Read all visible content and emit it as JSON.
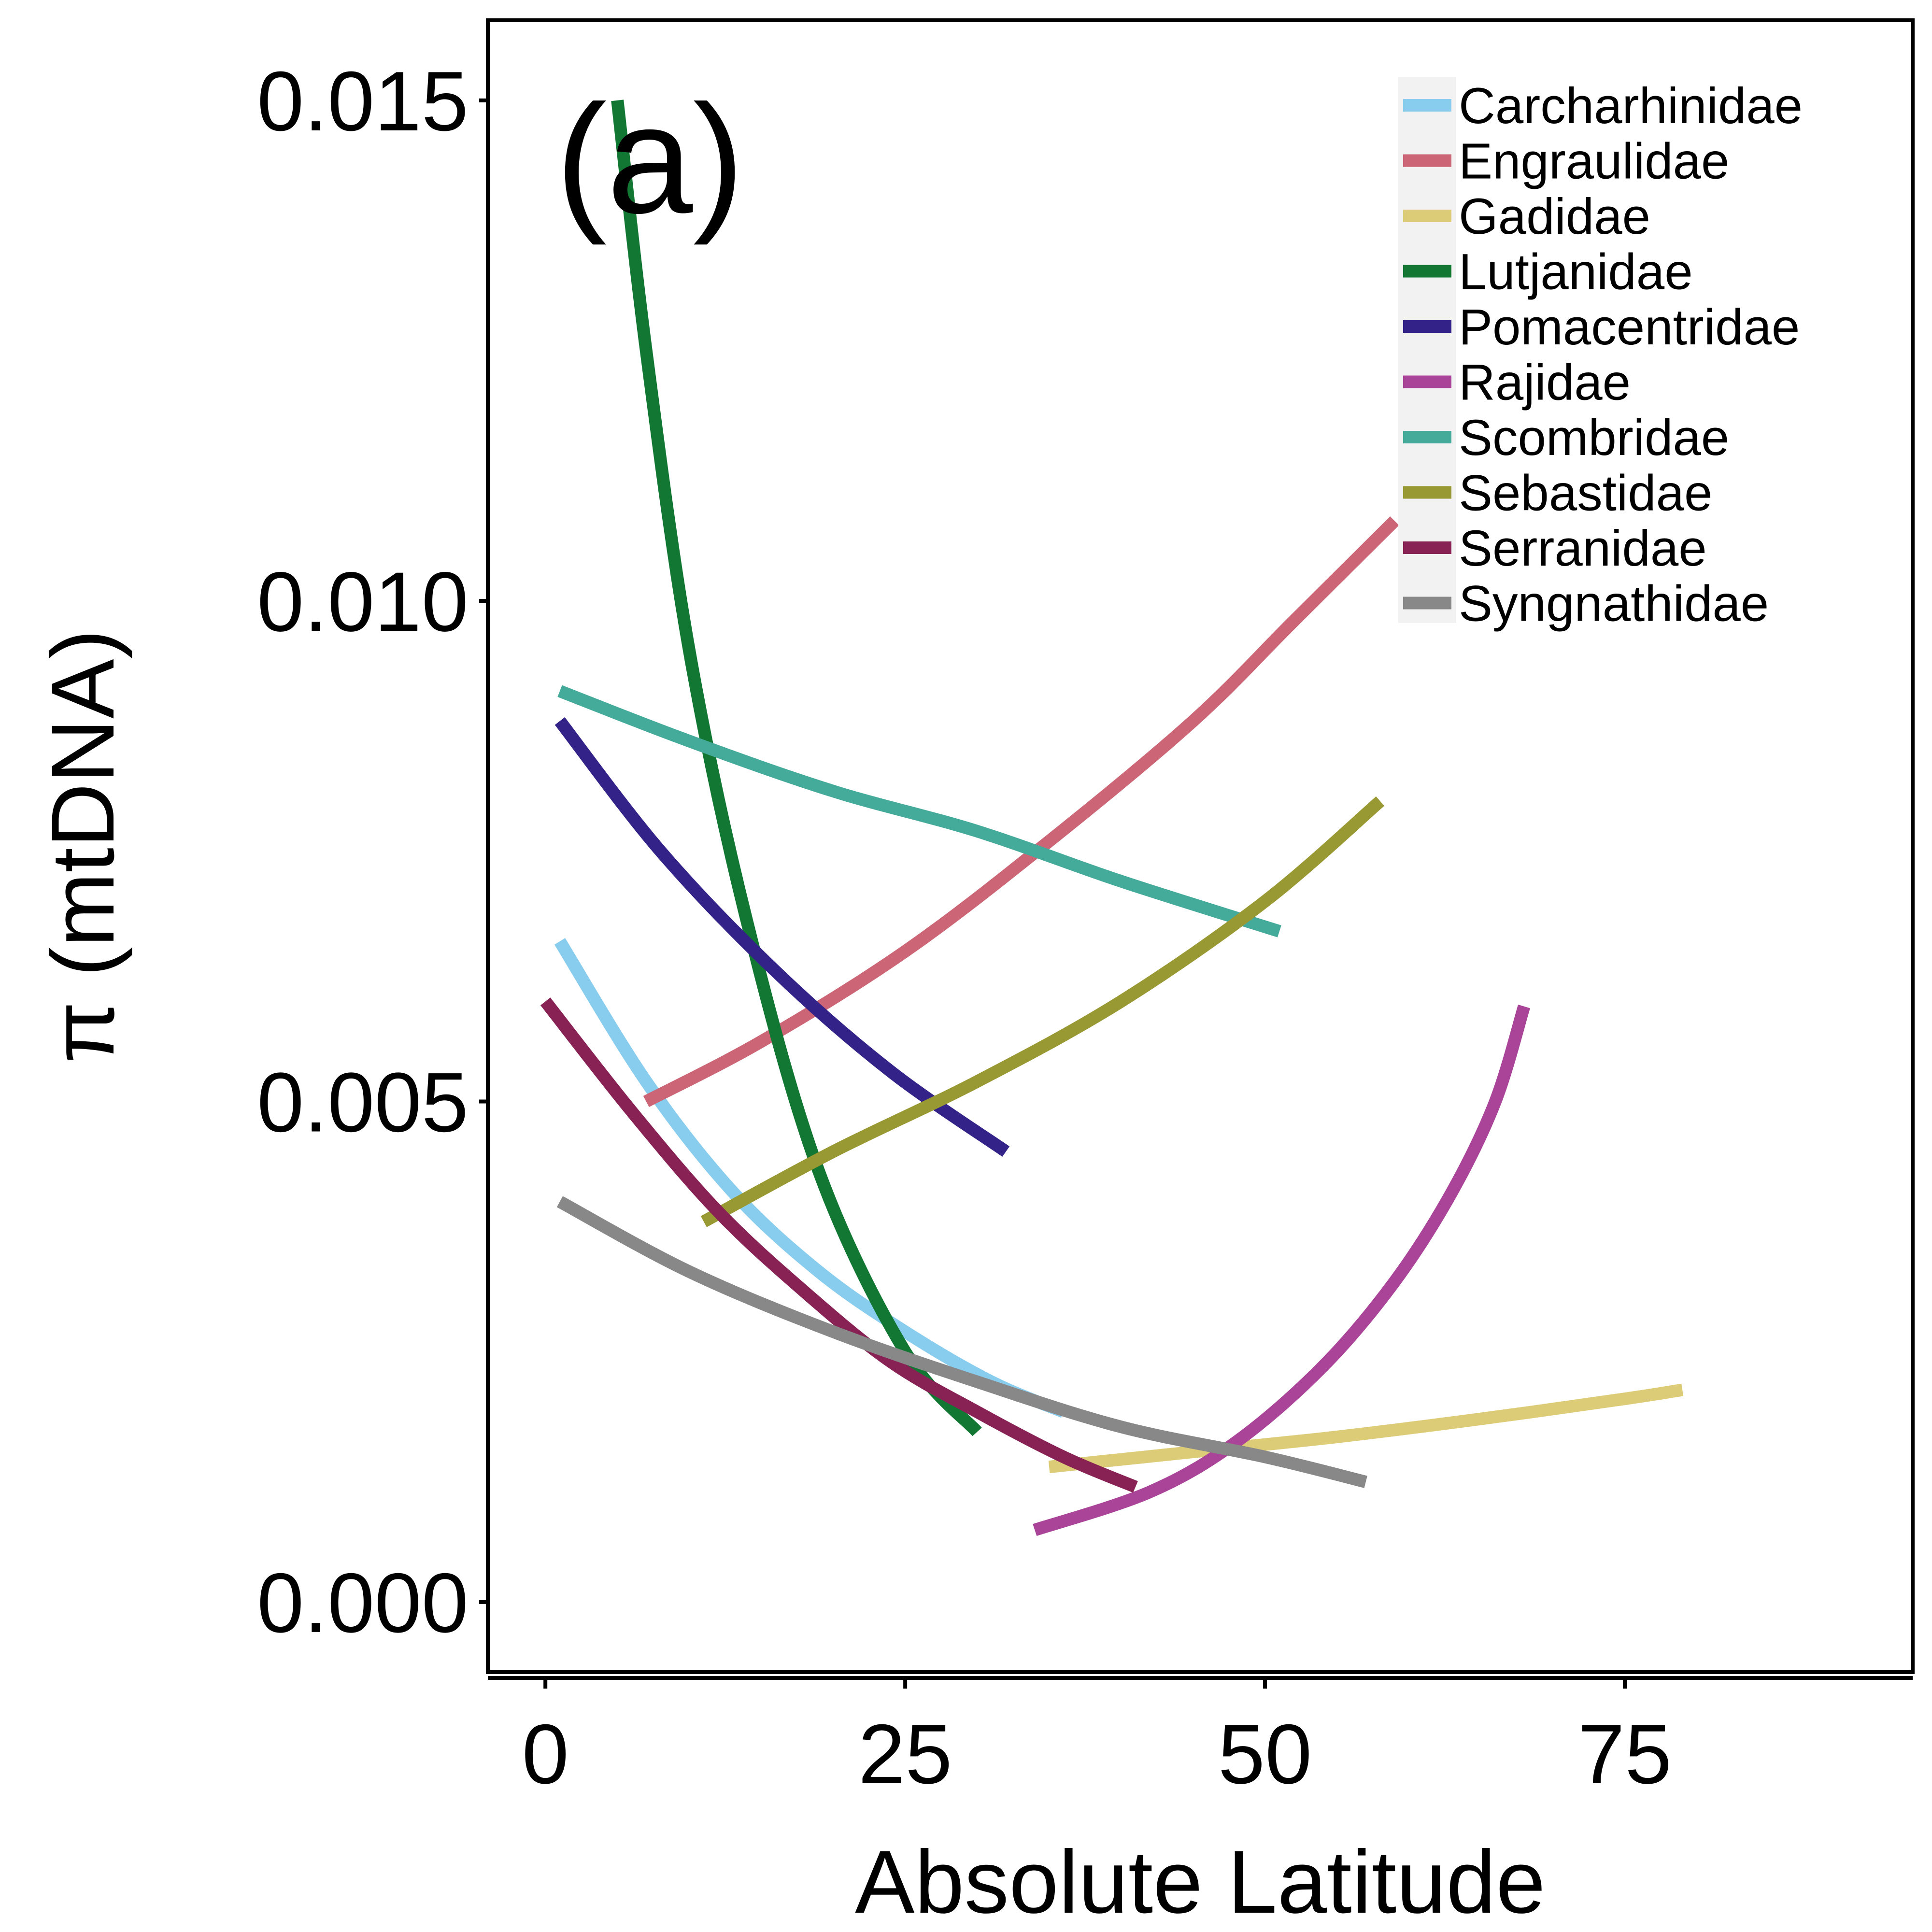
{
  "chart_data": {
    "type": "line",
    "panel_label": "(a)",
    "xlabel": "Absolute Latitude",
    "ylabel": "π (mtDNA)",
    "xlim": [
      -4,
      95
    ],
    "ylim": [
      -0.0007,
      0.0158
    ],
    "x_ticks": [
      0,
      25,
      50,
      75
    ],
    "x_tick_labels": [
      "0",
      "25",
      "50",
      "75"
    ],
    "y_ticks": [
      0,
      0.005,
      0.01,
      0.015
    ],
    "y_tick_labels": [
      "0.000",
      "0.005",
      "0.010",
      "0.015"
    ],
    "grid": false,
    "legend_position": "top-right",
    "series": [
      {
        "name": "Carcharhinidae",
        "color": "#88ccee",
        "x": [
          1,
          7,
          13,
          19,
          25,
          31,
          36
        ],
        "y": [
          0.0066,
          0.0052,
          0.0041,
          0.0033,
          0.0027,
          0.0022,
          0.0019
        ]
      },
      {
        "name": "Engraulidae",
        "color": "#cc6677",
        "x": [
          7,
          15,
          25,
          35,
          45,
          52,
          59
        ],
        "y": [
          0.005,
          0.0056,
          0.0065,
          0.0076,
          0.0088,
          0.0098,
          0.0108
        ]
      },
      {
        "name": "Gadidae",
        "color": "#ddcc77",
        "x": [
          35,
          45,
          55,
          65,
          75,
          79
        ],
        "y": [
          0.00135,
          0.0015,
          0.00165,
          0.00183,
          0.00203,
          0.00212
        ]
      },
      {
        "name": "Lutjanidae",
        "color": "#117733",
        "x": [
          5,
          7,
          10,
          14,
          19,
          25,
          30
        ],
        "y": [
          0.015,
          0.0125,
          0.0095,
          0.0068,
          0.0043,
          0.0025,
          0.0017
        ]
      },
      {
        "name": "Pomacentridae",
        "color": "#332288",
        "x": [
          1,
          8,
          16,
          24,
          32
        ],
        "y": [
          0.0088,
          0.0075,
          0.0063,
          0.0053,
          0.0045
        ]
      },
      {
        "name": "Rajidae",
        "color": "#aa4499",
        "x": [
          34,
          42,
          48,
          54,
          59,
          63,
          66,
          68
        ],
        "y": [
          0.00072,
          0.0011,
          0.0016,
          0.00235,
          0.0032,
          0.0041,
          0.005,
          0.00595
        ]
      },
      {
        "name": "Scombridae",
        "color": "#44aa99",
        "x": [
          1,
          10,
          20,
          30,
          40,
          51
        ],
        "y": [
          0.0091,
          0.0086,
          0.0081,
          0.0077,
          0.0072,
          0.0067
        ]
      },
      {
        "name": "Sebastidae",
        "color": "#999933",
        "x": [
          11,
          20,
          30,
          40,
          50,
          58
        ],
        "y": [
          0.0038,
          0.0045,
          0.0052,
          0.006,
          0.007,
          0.008
        ]
      },
      {
        "name": "Serranidae",
        "color": "#882255",
        "x": [
          0,
          6,
          12,
          18,
          24,
          30,
          36,
          41
        ],
        "y": [
          0.006,
          0.0049,
          0.0039,
          0.0031,
          0.0024,
          0.0019,
          0.00145,
          0.00115
        ]
      },
      {
        "name": "Syngnathidae",
        "color": "#888888",
        "x": [
          1,
          10,
          20,
          30,
          40,
          50,
          57
        ],
        "y": [
          0.004,
          0.0033,
          0.0027,
          0.0022,
          0.00175,
          0.00145,
          0.0012
        ]
      }
    ]
  }
}
